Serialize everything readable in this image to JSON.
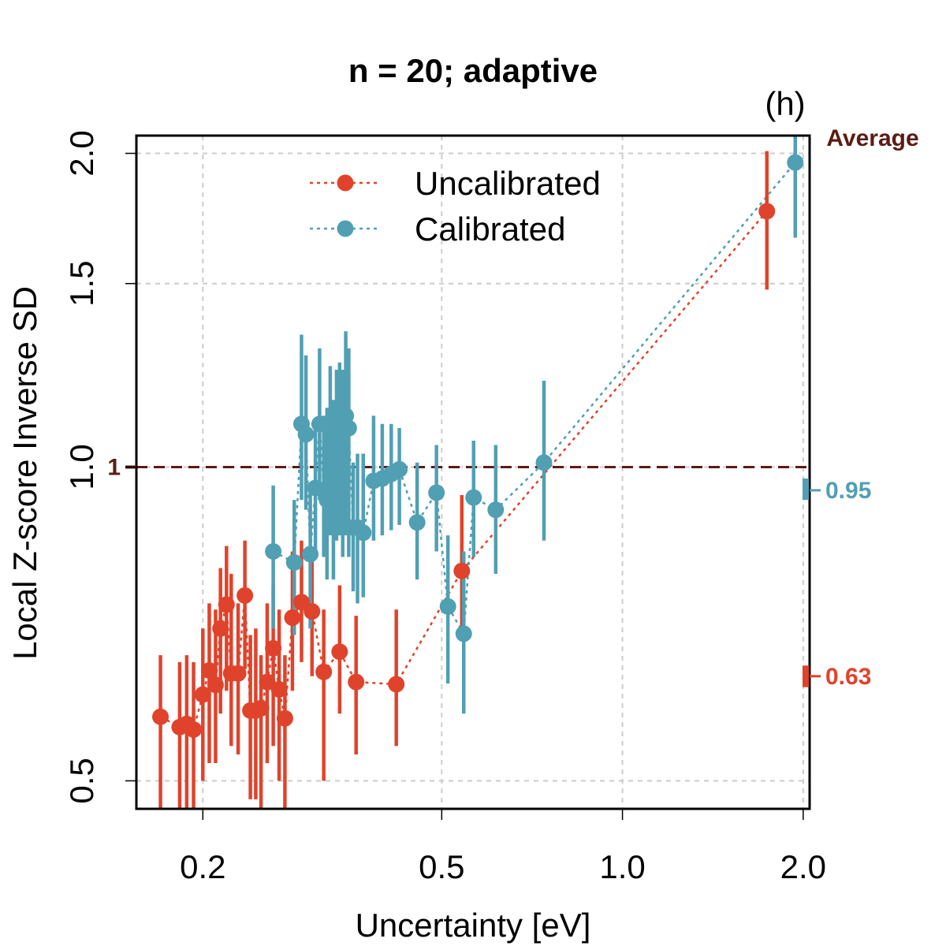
{
  "chart_data": {
    "type": "scatter",
    "title": "n = 20; adaptive",
    "panel_label": "(h)",
    "xlabel": "Uncertainty [eV]",
    "ylabel": "Local Z-score Inverse SD",
    "x_scale": "log",
    "y_scale": "log",
    "xlim": [
      0.155,
      2.05
    ],
    "ylim": [
      0.47,
      2.08
    ],
    "x_ticks": [
      0.2,
      0.5,
      1.0,
      2.0
    ],
    "x_tick_labels": [
      "0.2",
      "0.5",
      "1.0",
      "2.0"
    ],
    "y_ticks": [
      0.5,
      1.0,
      1.5,
      2.0
    ],
    "y_tick_labels": [
      "0.5",
      "1.0",
      "1.5",
      "2.0"
    ],
    "grid": true,
    "legend_position": "top-center",
    "reference": {
      "value": 1,
      "label": "1",
      "style": "dashed",
      "color": "#5a1c14"
    },
    "average_label": "Average",
    "colors": {
      "uncalibrated": "#e0432b",
      "calibrated": "#519fb3"
    },
    "series": [
      {
        "name": "Uncalibrated",
        "color": "#e0432b",
        "average": 0.63,
        "average_label": "0.63",
        "average_range": [
          0.615,
          0.645
        ],
        "points": [
          {
            "x": 0.17,
            "y": 0.576,
            "lo": 0.45,
            "hi": 0.66
          },
          {
            "x": 0.183,
            "y": 0.563,
            "lo": 0.44,
            "hi": 0.65
          },
          {
            "x": 0.188,
            "y": 0.567,
            "lo": 0.45,
            "hi": 0.66
          },
          {
            "x": 0.193,
            "y": 0.56,
            "lo": 0.44,
            "hi": 0.65
          },
          {
            "x": 0.2,
            "y": 0.605,
            "lo": 0.5,
            "hi": 0.7
          },
          {
            "x": 0.205,
            "y": 0.638,
            "lo": 0.52,
            "hi": 0.74
          },
          {
            "x": 0.21,
            "y": 0.618,
            "lo": 0.52,
            "hi": 0.73
          },
          {
            "x": 0.214,
            "y": 0.7,
            "lo": 0.58,
            "hi": 0.8
          },
          {
            "x": 0.219,
            "y": 0.738,
            "lo": 0.61,
            "hi": 0.84
          },
          {
            "x": 0.223,
            "y": 0.634,
            "lo": 0.54,
            "hi": 0.79
          },
          {
            "x": 0.229,
            "y": 0.634,
            "lo": 0.53,
            "hi": 0.74
          },
          {
            "x": 0.235,
            "y": 0.753,
            "lo": 0.64,
            "hi": 0.85
          },
          {
            "x": 0.24,
            "y": 0.584,
            "lo": 0.48,
            "hi": 0.69
          },
          {
            "x": 0.245,
            "y": 0.584,
            "lo": 0.48,
            "hi": 0.7
          },
          {
            "x": 0.25,
            "y": 0.587,
            "lo": 0.46,
            "hi": 0.66
          },
          {
            "x": 0.256,
            "y": 0.622,
            "lo": 0.52,
            "hi": 0.74
          },
          {
            "x": 0.262,
            "y": 0.67,
            "lo": 0.54,
            "hi": 0.77
          },
          {
            "x": 0.268,
            "y": 0.612,
            "lo": 0.5,
            "hi": 0.73
          },
          {
            "x": 0.274,
            "y": 0.574,
            "lo": 0.46,
            "hi": 0.66
          },
          {
            "x": 0.282,
            "y": 0.717,
            "lo": 0.61,
            "hi": 0.83
          },
          {
            "x": 0.292,
            "y": 0.742,
            "lo": 0.65,
            "hi": 0.85
          },
          {
            "x": 0.304,
            "y": 0.727,
            "lo": 0.63,
            "hi": 0.83
          },
          {
            "x": 0.318,
            "y": 0.636,
            "lo": 0.5,
            "hi": 0.73
          },
          {
            "x": 0.338,
            "y": 0.665,
            "lo": 0.58,
            "hi": 0.77
          },
          {
            "x": 0.36,
            "y": 0.622,
            "lo": 0.53,
            "hi": 0.72
          },
          {
            "x": 0.42,
            "y": 0.619,
            "lo": 0.54,
            "hi": 0.73
          },
          {
            "x": 0.54,
            "y": 0.795,
            "lo": 0.7,
            "hi": 0.94
          },
          {
            "x": 1.74,
            "y": 1.76,
            "lo": 1.48,
            "hi": 2.01
          }
        ]
      },
      {
        "name": "Calibrated",
        "color": "#519fb3",
        "average": 0.95,
        "average_label": "0.95",
        "average_range": [
          0.93,
          0.975
        ],
        "points": [
          {
            "x": 0.262,
            "y": 0.83,
            "lo": 0.7,
            "hi": 0.96
          },
          {
            "x": 0.284,
            "y": 0.81,
            "lo": 0.69,
            "hi": 0.93
          },
          {
            "x": 0.292,
            "y": 1.1,
            "lo": 0.93,
            "hi": 1.34
          },
          {
            "x": 0.297,
            "y": 1.075,
            "lo": 0.91,
            "hi": 1.28
          },
          {
            "x": 0.302,
            "y": 0.825,
            "lo": 0.7,
            "hi": 0.96
          },
          {
            "x": 0.308,
            "y": 0.955,
            "lo": 0.83,
            "hi": 1.09
          },
          {
            "x": 0.313,
            "y": 1.1,
            "lo": 0.93,
            "hi": 1.3
          },
          {
            "x": 0.318,
            "y": 0.95,
            "lo": 0.82,
            "hi": 1.12
          },
          {
            "x": 0.322,
            "y": 0.93,
            "lo": 0.78,
            "hi": 1.14
          },
          {
            "x": 0.326,
            "y": 1.01,
            "lo": 0.86,
            "hi": 1.25
          },
          {
            "x": 0.33,
            "y": 0.975,
            "lo": 0.78,
            "hi": 1.16
          },
          {
            "x": 0.334,
            "y": 1.06,
            "lo": 0.85,
            "hi": 1.24
          },
          {
            "x": 0.338,
            "y": 1.0,
            "lo": 0.86,
            "hi": 1.26
          },
          {
            "x": 0.342,
            "y": 0.99,
            "lo": 0.82,
            "hi": 1.24
          },
          {
            "x": 0.346,
            "y": 1.12,
            "lo": 0.86,
            "hi": 1.35
          },
          {
            "x": 0.35,
            "y": 1.09,
            "lo": 0.82,
            "hi": 1.3
          },
          {
            "x": 0.356,
            "y": 0.875,
            "lo": 0.76,
            "hi": 1.01
          },
          {
            "x": 0.362,
            "y": 0.875,
            "lo": 0.74,
            "hi": 1.03
          },
          {
            "x": 0.37,
            "y": 0.865,
            "lo": 0.75,
            "hi": 1.03
          },
          {
            "x": 0.385,
            "y": 0.97,
            "lo": 0.85,
            "hi": 1.12
          },
          {
            "x": 0.398,
            "y": 0.975,
            "lo": 0.86,
            "hi": 1.1
          },
          {
            "x": 0.412,
            "y": 0.985,
            "lo": 0.87,
            "hi": 1.1
          },
          {
            "x": 0.425,
            "y": 0.995,
            "lo": 0.88,
            "hi": 1.09
          },
          {
            "x": 0.455,
            "y": 0.885,
            "lo": 0.78,
            "hi": 1.01
          },
          {
            "x": 0.49,
            "y": 0.945,
            "lo": 0.83,
            "hi": 1.05
          },
          {
            "x": 0.512,
            "y": 0.735,
            "lo": 0.62,
            "hi": 0.86
          },
          {
            "x": 0.544,
            "y": 0.692,
            "lo": 0.58,
            "hi": 0.83
          },
          {
            "x": 0.565,
            "y": 0.935,
            "lo": 0.82,
            "hi": 1.06
          },
          {
            "x": 0.615,
            "y": 0.91,
            "lo": 0.79,
            "hi": 1.05
          },
          {
            "x": 0.74,
            "y": 1.01,
            "lo": 0.85,
            "hi": 1.21
          },
          {
            "x": 1.94,
            "y": 1.96,
            "lo": 1.66,
            "hi": 2.08
          }
        ]
      }
    ]
  }
}
